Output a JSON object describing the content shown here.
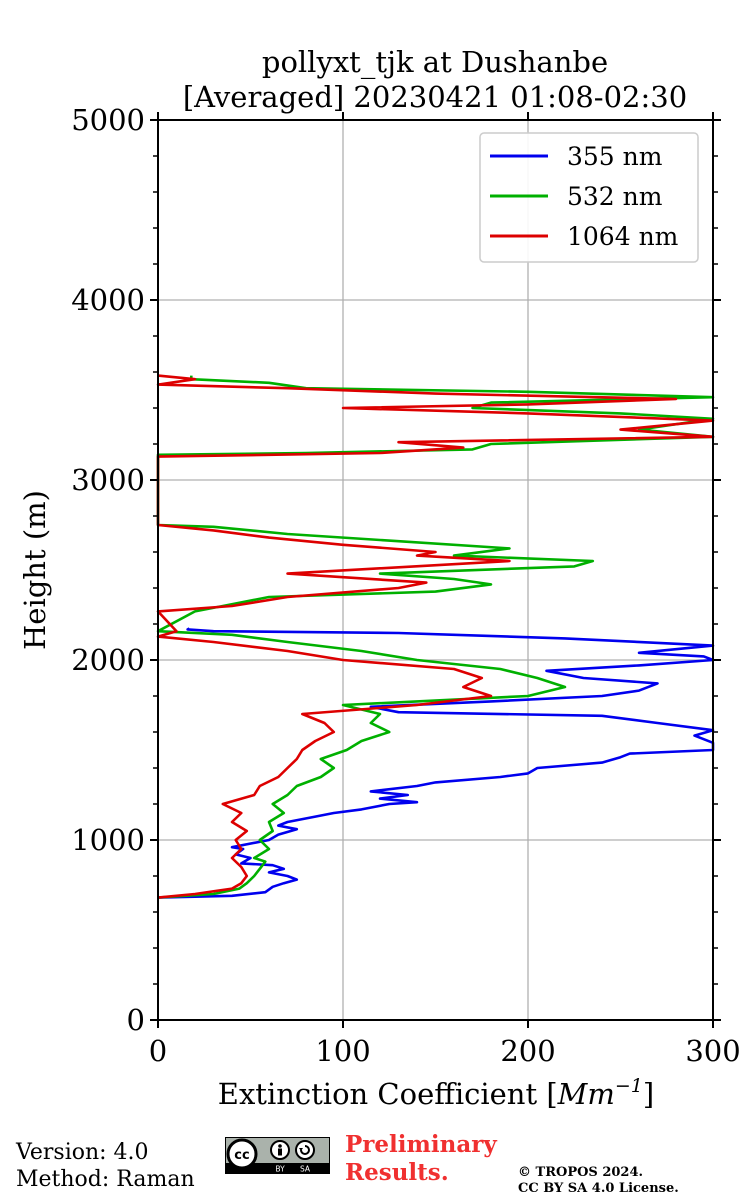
{
  "chart_data": {
    "type": "line",
    "title_line1": "pollyxt_tjk at Dushanbe",
    "title_line2": "[Averaged] 20230421 01:08-02:30",
    "xlabel_main": "Extinction Coefficient [",
    "xlabel_unit": "Mm",
    "xlabel_exp": "−1",
    "xlabel_close": "]",
    "ylabel": "Height (m)",
    "xlim": [
      0,
      300
    ],
    "ylim": [
      0,
      5000
    ],
    "xticks": [
      0,
      100,
      200,
      300
    ],
    "xtick_labels": [
      "0",
      "100",
      "200",
      "300"
    ],
    "yticks": [
      0,
      1000,
      2000,
      3000,
      4000,
      5000
    ],
    "ytick_labels": [
      "0",
      "1000",
      "2000",
      "3000",
      "4000",
      "5000"
    ],
    "grid": true,
    "legend_position": "top-right",
    "series": [
      {
        "name": "355 nm",
        "color": "#0000ee",
        "points": [
          [
            0,
            680
          ],
          [
            40,
            690
          ],
          [
            58,
            710
          ],
          [
            62,
            740
          ],
          [
            68,
            760
          ],
          [
            75,
            780
          ],
          [
            70,
            800
          ],
          [
            60,
            820
          ],
          [
            68,
            840
          ],
          [
            62,
            860
          ],
          [
            45,
            870
          ],
          [
            50,
            900
          ],
          [
            42,
            920
          ],
          [
            46,
            950
          ],
          [
            40,
            960
          ],
          [
            60,
            1000
          ],
          [
            65,
            1030
          ],
          [
            75,
            1060
          ],
          [
            65,
            1080
          ],
          [
            70,
            1100
          ],
          [
            85,
            1130
          ],
          [
            95,
            1150
          ],
          [
            110,
            1170
          ],
          [
            125,
            1200
          ],
          [
            140,
            1210
          ],
          [
            120,
            1230
          ],
          [
            135,
            1250
          ],
          [
            115,
            1270
          ],
          [
            140,
            1300
          ],
          [
            150,
            1320
          ],
          [
            185,
            1350
          ],
          [
            200,
            1370
          ],
          [
            205,
            1400
          ],
          [
            240,
            1430
          ],
          [
            250,
            1460
          ],
          [
            255,
            1480
          ],
          [
            300,
            1500
          ],
          [
            300,
            1540
          ],
          [
            290,
            1580
          ],
          [
            300,
            1610
          ],
          [
            270,
            1650
          ],
          [
            240,
            1690
          ],
          [
            130,
            1710
          ],
          [
            115,
            1740
          ],
          [
            180,
            1770
          ],
          [
            240,
            1800
          ],
          [
            260,
            1830
          ],
          [
            270,
            1870
          ],
          [
            230,
            1900
          ],
          [
            210,
            1940
          ],
          [
            260,
            1970
          ],
          [
            300,
            2000
          ],
          [
            295,
            2020
          ],
          [
            260,
            2040
          ],
          [
            300,
            2080
          ],
          [
            220,
            2120
          ],
          [
            130,
            2150
          ],
          [
            30,
            2160
          ],
          [
            16,
            2170
          ],
          [
            17,
            2175
          ]
        ]
      },
      {
        "name": "532 nm",
        "color": "#00b000",
        "points": [
          [
            0,
            680
          ],
          [
            30,
            700
          ],
          [
            44,
            730
          ],
          [
            48,
            760
          ],
          [
            52,
            800
          ],
          [
            55,
            840
          ],
          [
            58,
            880
          ],
          [
            52,
            900
          ],
          [
            60,
            950
          ],
          [
            55,
            1000
          ],
          [
            62,
            1050
          ],
          [
            60,
            1100
          ],
          [
            68,
            1150
          ],
          [
            62,
            1200
          ],
          [
            70,
            1250
          ],
          [
            75,
            1300
          ],
          [
            88,
            1350
          ],
          [
            95,
            1400
          ],
          [
            88,
            1450
          ],
          [
            102,
            1500
          ],
          [
            110,
            1550
          ],
          [
            125,
            1600
          ],
          [
            115,
            1650
          ],
          [
            120,
            1700
          ],
          [
            100,
            1750
          ],
          [
            200,
            1800
          ],
          [
            220,
            1850
          ],
          [
            205,
            1900
          ],
          [
            185,
            1950
          ],
          [
            140,
            2000
          ],
          [
            110,
            2050
          ],
          [
            70,
            2100
          ],
          [
            40,
            2140
          ],
          [
            0,
            2160
          ],
          [
            20,
            2270
          ],
          [
            35,
            2300
          ],
          [
            60,
            2350
          ],
          [
            150,
            2380
          ],
          [
            180,
            2420
          ],
          [
            160,
            2450
          ],
          [
            120,
            2480
          ],
          [
            225,
            2520
          ],
          [
            235,
            2550
          ],
          [
            160,
            2580
          ],
          [
            190,
            2620
          ],
          [
            130,
            2660
          ],
          [
            70,
            2700
          ],
          [
            30,
            2740
          ],
          [
            0,
            2750
          ],
          [
            0,
            3140
          ],
          [
            80,
            3150
          ],
          [
            170,
            3170
          ],
          [
            180,
            3200
          ],
          [
            300,
            3240
          ],
          [
            260,
            3280
          ],
          [
            300,
            3340
          ],
          [
            250,
            3370
          ],
          [
            170,
            3400
          ],
          [
            180,
            3430
          ],
          [
            300,
            3460
          ],
          [
            200,
            3490
          ],
          [
            80,
            3510
          ],
          [
            60,
            3540
          ],
          [
            18,
            3560
          ],
          [
            18,
            3580
          ]
        ]
      },
      {
        "name": "1064 nm",
        "color": "#dd0000",
        "points": [
          [
            0,
            680
          ],
          [
            20,
            700
          ],
          [
            40,
            730
          ],
          [
            45,
            760
          ],
          [
            48,
            800
          ],
          [
            45,
            850
          ],
          [
            40,
            900
          ],
          [
            45,
            950
          ],
          [
            42,
            1000
          ],
          [
            48,
            1050
          ],
          [
            40,
            1100
          ],
          [
            45,
            1150
          ],
          [
            35,
            1200
          ],
          [
            52,
            1250
          ],
          [
            55,
            1300
          ],
          [
            65,
            1350
          ],
          [
            70,
            1400
          ],
          [
            75,
            1450
          ],
          [
            78,
            1500
          ],
          [
            85,
            1550
          ],
          [
            95,
            1600
          ],
          [
            90,
            1650
          ],
          [
            78,
            1700
          ],
          [
            140,
            1750
          ],
          [
            180,
            1800
          ],
          [
            165,
            1850
          ],
          [
            175,
            1900
          ],
          [
            160,
            1950
          ],
          [
            100,
            2000
          ],
          [
            70,
            2050
          ],
          [
            30,
            2100
          ],
          [
            0,
            2130
          ],
          [
            10,
            2160
          ],
          [
            0,
            2270
          ],
          [
            40,
            2300
          ],
          [
            70,
            2350
          ],
          [
            130,
            2400
          ],
          [
            145,
            2430
          ],
          [
            100,
            2460
          ],
          [
            70,
            2480
          ],
          [
            190,
            2550
          ],
          [
            140,
            2580
          ],
          [
            150,
            2600
          ],
          [
            100,
            2640
          ],
          [
            60,
            2680
          ],
          [
            30,
            2720
          ],
          [
            0,
            2750
          ],
          [
            0,
            3130
          ],
          [
            120,
            3150
          ],
          [
            165,
            3180
          ],
          [
            130,
            3210
          ],
          [
            300,
            3240
          ],
          [
            250,
            3280
          ],
          [
            300,
            3330
          ],
          [
            200,
            3370
          ],
          [
            100,
            3400
          ],
          [
            200,
            3420
          ],
          [
            280,
            3450
          ],
          [
            150,
            3480
          ],
          [
            70,
            3510
          ],
          [
            0,
            3530
          ],
          [
            20,
            3560
          ],
          [
            0,
            3580
          ]
        ]
      }
    ]
  },
  "footer": {
    "version": "Version: 4.0",
    "method": "Method: Raman",
    "preliminary_line1": "Preliminary",
    "preliminary_line2": "Results.",
    "copyright_line1": "© TROPOS 2024.",
    "copyright_line2": "CC BY SA 4.0 License.",
    "license_badge": {
      "cc": "cc",
      "by": "BY",
      "sa": "SA",
      "icon_names": [
        "cc-icon",
        "person-icon",
        "share-alike-icon"
      ]
    }
  }
}
